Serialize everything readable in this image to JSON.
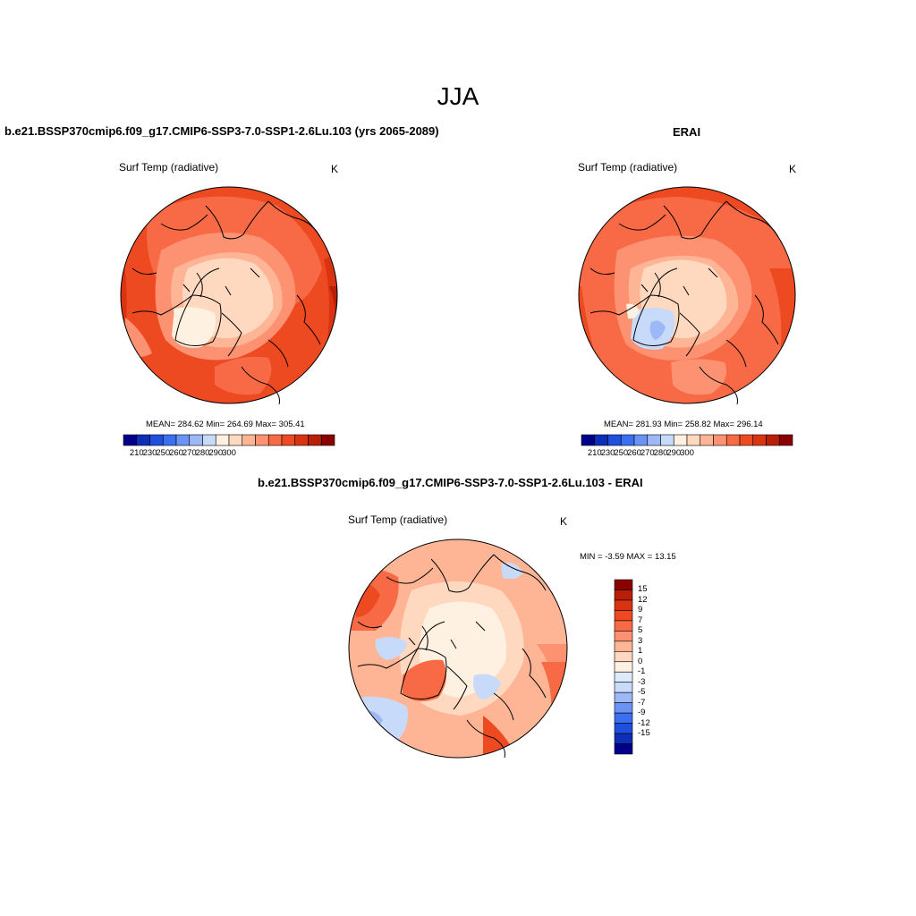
{
  "figure": {
    "title": "JJA",
    "variable": "Surf Temp (radiative)",
    "units": "K"
  },
  "panels": [
    {
      "id": "model",
      "title": "b.e21.BSSP370cmip6.f09_g17.CMIP6-SSP3-7.0-SSP1-2.6Lu.103 (yrs 2065-2089)",
      "stats_text": "MEAN= 284.62  Min= 264.69  Max= 305.41",
      "mean": 284.62,
      "min": 264.69,
      "max": 305.41
    },
    {
      "id": "obs",
      "title": "ERAI",
      "stats_text": "MEAN= 281.93  Min= 258.82  Max= 296.14",
      "mean": 281.93,
      "min": 258.82,
      "max": 296.14
    },
    {
      "id": "diff",
      "title": "b.e21.BSSP370cmip6.f09_g17.CMIP6-SSP3-7.0-SSP1-2.6Lu.103 - ERAI",
      "stats_text": "MIN =  -3.59 MAX =  13.15",
      "min": -3.59,
      "max": 13.15
    }
  ],
  "abs_colorbar": {
    "colors": [
      "#00008b",
      "#0d2fb8",
      "#1f4fdc",
      "#3a6ff2",
      "#6b93f5",
      "#9cb8f7",
      "#c8daf9",
      "#fff1e1",
      "#ffd8c0",
      "#fdb596",
      "#fc9272",
      "#f86a45",
      "#ee4a22",
      "#d93311",
      "#b81e08",
      "#8b0000"
    ],
    "labels": [
      "210",
      "230",
      "250",
      "260",
      "270",
      "280",
      "290",
      "300"
    ]
  },
  "diff_colorbar": {
    "colors": [
      "#8b0000",
      "#b81e08",
      "#d93311",
      "#ee4a22",
      "#f86a45",
      "#fc9272",
      "#fdb596",
      "#ffd8c0",
      "#fff1e1",
      "#deeaf9",
      "#c8daf9",
      "#9cb8f7",
      "#6b93f5",
      "#3a6ff2",
      "#1f4fdc",
      "#0d2fb8",
      "#00008b"
    ],
    "labels": [
      "15",
      "12",
      "9",
      "7",
      "5",
      "3",
      "1",
      "0",
      "-1",
      "-3",
      "-5",
      "-7",
      "-9",
      "-12",
      "-15"
    ]
  },
  "map_colors": {
    "warm4": "#d93311",
    "warm3": "#ee4a22",
    "warm2": "#f86a45",
    "warm1": "#fc9272",
    "pale2": "#fdb596",
    "pale1": "#ffd8c0",
    "cream": "#fff1e1",
    "lightblue": "#c8daf9",
    "midblue": "#9cb8f7",
    "darkred": "#b81e08"
  }
}
